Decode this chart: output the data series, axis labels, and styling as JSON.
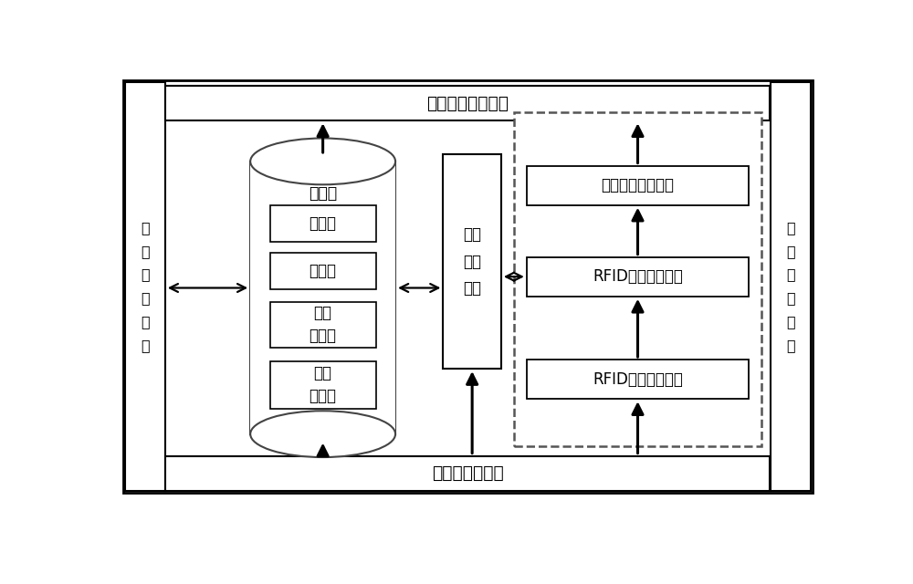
{
  "background_color": "#ffffff",
  "labels": {
    "top_bar": "上层应用接口模块",
    "bottom_bar": "读写器接口模块",
    "left_bar": "管\n理\n配\n置\n模\n块",
    "right_bar": "数\n据\n处\n理\n模\n块",
    "database": "数据库",
    "db1": "规则库",
    "db2": "事件库",
    "db3": "设备\n驱动库",
    "db4": "配置\n参数库",
    "cache": "数据\n缓存\n模块",
    "complex_event": "复杂事件组装模块",
    "rfid_filter": "RFID数据过滤模块",
    "rfid_group": "RFID数据分组模块"
  },
  "layout": {
    "fig_w": 10.0,
    "fig_h": 6.4,
    "dpi": 100,
    "xmax": 10.0,
    "ymax": 6.4
  }
}
